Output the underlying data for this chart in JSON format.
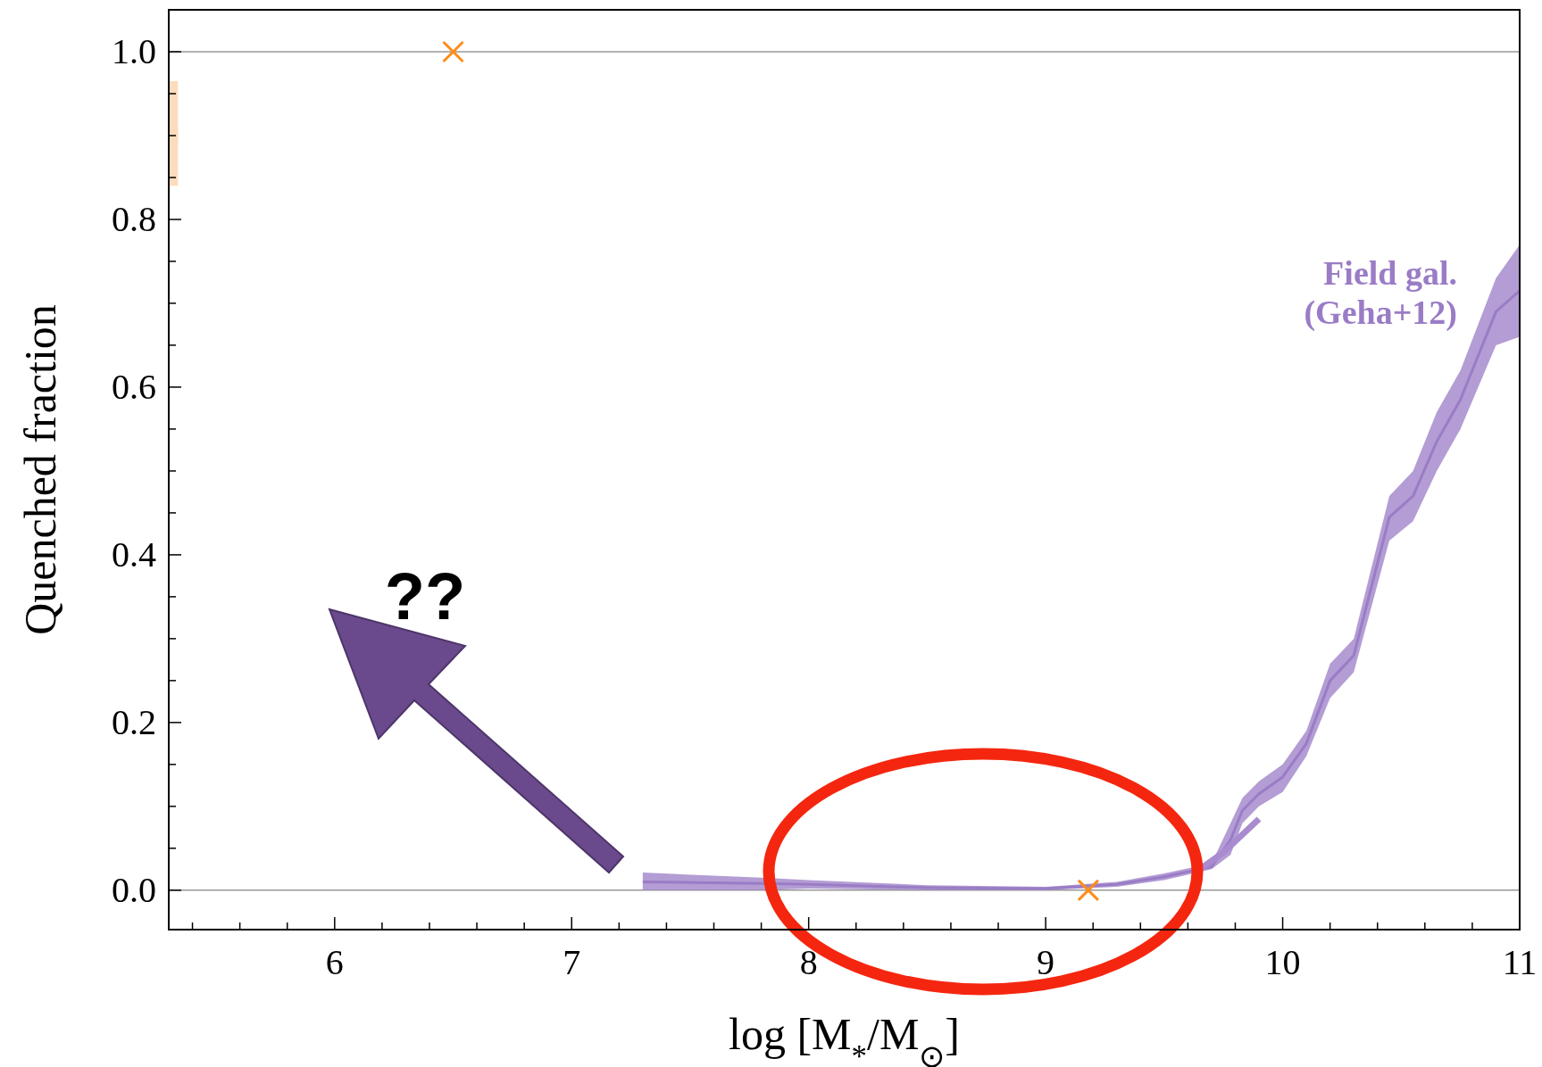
{
  "chart_data": {
    "type": "line",
    "xlabel": "log [M$_{*}$/M$_{⊙}$]",
    "ylabel": "Quenched fraction",
    "xlim": [
      5.3,
      11
    ],
    "ylim": [
      -0.047,
      1.05
    ],
    "xticks": [
      {
        "value": 5.4,
        "label": null
      },
      {
        "value": 5.6,
        "label": null
      },
      {
        "value": 5.8,
        "label": null
      },
      6,
      {
        "value": 6.2,
        "label": null
      },
      {
        "value": 6.4,
        "label": null
      },
      {
        "value": 6.6,
        "label": null
      },
      {
        "value": 6.8,
        "label": null
      },
      7,
      {
        "value": 7.2,
        "label": null
      },
      {
        "value": 7.4,
        "label": null
      },
      {
        "value": 7.6,
        "label": null
      },
      {
        "value": 7.8,
        "label": null
      },
      8,
      {
        "value": 8.2,
        "label": null
      },
      {
        "value": 8.4,
        "label": null
      },
      {
        "value": 8.6,
        "label": null
      },
      {
        "value": 8.8,
        "label": null
      },
      9,
      {
        "value": 9.2,
        "label": null
      },
      {
        "value": 9.4,
        "label": null
      },
      {
        "value": 9.6,
        "label": null
      },
      {
        "value": 9.8,
        "label": null
      },
      10,
      {
        "value": 10.2,
        "label": null
      },
      {
        "value": 10.4,
        "label": null
      },
      {
        "value": 10.6,
        "label": null
      },
      {
        "value": 10.8,
        "label": null
      },
      11
    ],
    "yticks": [
      {
        "value": 0,
        "label": "0.0"
      },
      {
        "value": 0.05,
        "label": null
      },
      {
        "value": 0.1,
        "label": null
      },
      {
        "value": 0.15,
        "label": null
      },
      0.2,
      {
        "value": 0.25,
        "label": null
      },
      {
        "value": 0.3,
        "label": null
      },
      {
        "value": 0.35,
        "label": null
      },
      0.4,
      {
        "value": 0.45,
        "label": null
      },
      {
        "value": 0.5,
        "label": null
      },
      {
        "value": 0.55,
        "label": null
      },
      0.6,
      {
        "value": 0.65,
        "label": null
      },
      {
        "value": 0.7,
        "label": null
      },
      {
        "value": 0.75,
        "label": null
      },
      0.8,
      {
        "value": 0.85,
        "label": null
      },
      {
        "value": 0.9,
        "label": null
      },
      {
        "value": 0.95,
        "label": null
      },
      {
        "value": 1,
        "label": "1.0"
      }
    ],
    "grid": false,
    "ref_lines": [
      {
        "axis": "y",
        "value": 0,
        "color": "#999999"
      },
      {
        "axis": "y",
        "value": 1,
        "color": "#999999"
      }
    ],
    "series": [
      {
        "name": "Field gal. (Geha+12)",
        "color": "#9a7cc6",
        "x": [
          7.3,
          7.8,
          8.0,
          8.5,
          9.0,
          9.3,
          9.5,
          9.7,
          9.78,
          9.83,
          9.9,
          10.0,
          10.1,
          10.2,
          10.3,
          10.45,
          10.55,
          10.65,
          10.75,
          10.9,
          11.0
        ],
        "values": [
          0.01,
          0.008,
          0.007,
          0.003,
          0.002,
          0.007,
          0.016,
          0.028,
          0.06,
          0.095,
          0.115,
          0.135,
          0.175,
          0.25,
          0.28,
          0.445,
          0.47,
          0.535,
          0.585,
          0.69,
          0.715
        ],
        "lower": [
          0.0,
          0.0,
          0.002,
          0.0,
          0.0,
          0.004,
          0.012,
          0.025,
          0.042,
          0.08,
          0.1,
          0.117,
          0.16,
          0.229,
          0.26,
          0.417,
          0.44,
          0.5,
          0.55,
          0.65,
          0.66
        ],
        "upper": [
          0.021,
          0.015,
          0.012,
          0.006,
          0.004,
          0.01,
          0.02,
          0.032,
          0.08,
          0.11,
          0.13,
          0.15,
          0.19,
          0.27,
          0.3,
          0.47,
          0.5,
          0.57,
          0.62,
          0.73,
          0.77
        ]
      },
      {
        "color": "#a98bd0",
        "x": [
          9.65,
          9.75,
          9.9
        ],
        "values": [
          0.025,
          0.045,
          0.085
        ]
      },
      {
        "type": "scatter",
        "color": "#ff8c1a",
        "marker": "cross",
        "x": [
          6.5,
          9.18
        ],
        "values": [
          1.0,
          0.0
        ]
      },
      {
        "type": "scatter",
        "color": "#fcdcbc",
        "marker": "square",
        "x": [
          5.32
        ],
        "values": [
          0.9
        ],
        "errors": [
          [
            0.84,
            0.965
          ]
        ]
      }
    ],
    "annotations": [
      "??"
    ]
  }
}
